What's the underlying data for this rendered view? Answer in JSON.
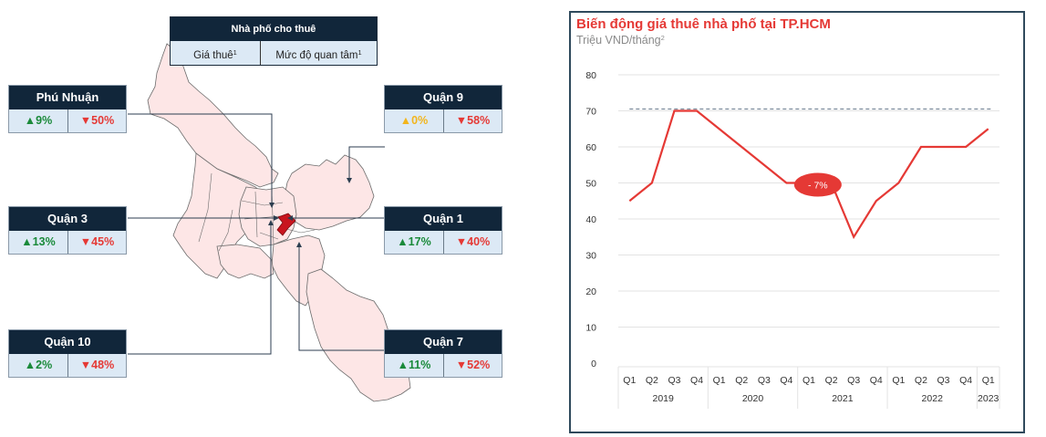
{
  "map": {
    "legend": {
      "title": "Nhà phố cho thuê",
      "col1": "Giá thuê",
      "col2": "Mức độ quan tâm",
      "footnote_mark": "1"
    },
    "districts": [
      {
        "name": "Phú Nhuận",
        "price_change": "9%",
        "price_dir": "up",
        "price_color": "green",
        "interest_change": "50%",
        "interest_dir": "down"
      },
      {
        "name": "Quận 9",
        "price_change": "0%",
        "price_dir": "up",
        "price_color": "yellow",
        "interest_change": "58%",
        "interest_dir": "down"
      },
      {
        "name": "Quận 3",
        "price_change": "13%",
        "price_dir": "up",
        "price_color": "green",
        "interest_change": "45%",
        "interest_dir": "down"
      },
      {
        "name": "Quận 1",
        "price_change": "17%",
        "price_dir": "up",
        "price_color": "green",
        "interest_change": "40%",
        "interest_dir": "down"
      },
      {
        "name": "Quận 10",
        "price_change": "2%",
        "price_dir": "up",
        "price_color": "green",
        "interest_change": "48%",
        "interest_dir": "down"
      },
      {
        "name": "Quận 7",
        "price_change": "11%",
        "price_dir": "up",
        "price_color": "green",
        "interest_change": "52%",
        "interest_dir": "down"
      }
    ],
    "icons": {
      "up": "▲",
      "down": "▼"
    },
    "colors": {
      "map_fill": "#fde6e6",
      "map_stroke": "#6b6b6b",
      "highlight": "#c8141e",
      "header_bg": "#11263a",
      "cell_bg": "#dce9f5",
      "green": "#1a8a3a",
      "yellow": "#f2b51c",
      "red": "#e53935"
    }
  },
  "chart": {
    "title": "Biến động giá thuê nhà phố tại TP.HCM",
    "subtitle": "Triệu VND/tháng",
    "subtitle_sup": "2",
    "annotation": "- 7%"
  },
  "chart_data": {
    "type": "line",
    "title": "Biến động giá thuê nhà phố tại TP.HCM",
    "subtitle": "Triệu VND/tháng²",
    "xlabel": "",
    "ylabel": "Triệu VND/tháng",
    "ylim": [
      0,
      80
    ],
    "yticks": [
      0,
      10,
      20,
      30,
      40,
      50,
      60,
      70,
      80
    ],
    "grid": true,
    "legend": null,
    "x": [
      "2019 Q1",
      "2019 Q2",
      "2019 Q3",
      "2019 Q4",
      "2020 Q1",
      "2020 Q2",
      "2020 Q3",
      "2020 Q4",
      "2021 Q1",
      "2021 Q2",
      "2021 Q3",
      "2021 Q4",
      "2022 Q1",
      "2022 Q2",
      "2022 Q3",
      "2022 Q4",
      "2023 Q1"
    ],
    "quarters": [
      "Q1",
      "Q2",
      "Q3",
      "Q4",
      "Q1",
      "Q2",
      "Q3",
      "Q4",
      "Q1",
      "Q2",
      "Q3",
      "Q4",
      "Q1",
      "Q2",
      "Q3",
      "Q4",
      "Q1"
    ],
    "year_groups": [
      {
        "label": "2019",
        "count": 4
      },
      {
        "label": "2020",
        "count": 4
      },
      {
        "label": "2021",
        "count": 4
      },
      {
        "label": "2022",
        "count": 4
      },
      {
        "label": "2023",
        "count": 1
      }
    ],
    "series": [
      {
        "name": "Giá thuê",
        "color": "#e53935",
        "values": [
          45,
          50,
          70,
          70,
          65,
          60,
          55,
          50,
          50,
          50,
          35,
          45,
          50,
          60,
          60,
          60,
          65
        ]
      }
    ],
    "reference_line": {
      "value": 70.5,
      "style": "dashed",
      "color": "#7a8a9a"
    },
    "annotations": [
      {
        "text": "- 7%",
        "x_index": 8.5,
        "y": 50,
        "shape": "ellipse",
        "color": "#e53935"
      }
    ]
  }
}
